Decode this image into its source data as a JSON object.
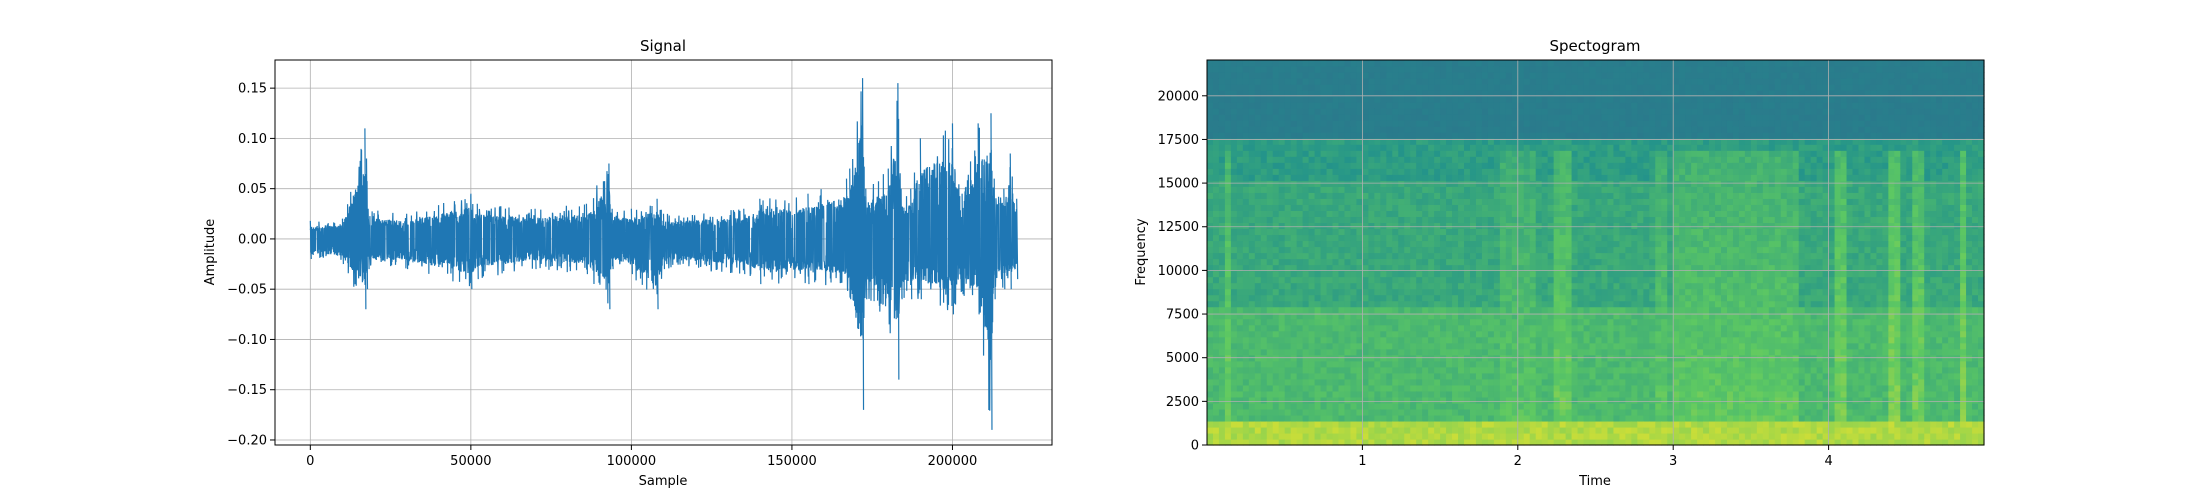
{
  "chart_data": [
    {
      "type": "line",
      "title": "Signal",
      "xlabel": "Sample",
      "ylabel": "Amplitude",
      "xlim": [
        -11000,
        231000
      ],
      "ylim": [
        -0.205,
        0.178
      ],
      "xticks": [
        0,
        50000,
        100000,
        150000,
        200000
      ],
      "xtick_labels": [
        "0",
        "50000",
        "100000",
        "150000",
        "200000"
      ],
      "yticks": [
        -0.2,
        -0.15,
        -0.1,
        -0.05,
        0.0,
        0.05,
        0.1,
        0.15
      ],
      "ytick_labels": [
        "−0.20",
        "−0.15",
        "−0.10",
        "−0.05",
        "0.00",
        "0.05",
        "0.10",
        "0.15"
      ],
      "grid": true,
      "color": "#1f77b4",
      "series": [
        {
          "x": [
            0,
            10000,
            17000,
            17500,
            18000,
            30000,
            50000,
            52000,
            70000,
            86000,
            93000,
            94000,
            100000,
            108000,
            110000,
            135000,
            140000,
            155000,
            167000,
            168000,
            172000,
            173000,
            180000,
            183000,
            184000,
            187000,
            190000,
            200000,
            203000,
            208000,
            212000,
            213000,
            216000,
            218000,
            220000
          ],
          "y_envelope_upper": [
            0.018,
            0.02,
            0.11,
            0.08,
            0.03,
            0.025,
            0.045,
            0.035,
            0.03,
            0.035,
            0.075,
            0.03,
            0.03,
            0.04,
            0.025,
            0.03,
            0.04,
            0.045,
            0.06,
            0.07,
            0.16,
            0.05,
            0.07,
            0.155,
            0.05,
            0.05,
            0.1,
            0.115,
            0.045,
            0.115,
            0.125,
            0.06,
            0.05,
            0.085,
            0.04
          ],
          "y_envelope_lower": [
            -0.02,
            -0.025,
            -0.07,
            -0.05,
            -0.03,
            -0.03,
            -0.05,
            -0.04,
            -0.03,
            -0.035,
            -0.07,
            -0.03,
            -0.035,
            -0.07,
            -0.03,
            -0.035,
            -0.045,
            -0.045,
            -0.05,
            -0.06,
            -0.17,
            -0.06,
            -0.085,
            -0.14,
            -0.06,
            -0.06,
            -0.06,
            -0.075,
            -0.055,
            -0.075,
            -0.19,
            -0.06,
            -0.05,
            -0.05,
            -0.04
          ]
        }
      ]
    },
    {
      "type": "heatmap",
      "title": "Spectogram",
      "xlabel": "Time",
      "ylabel": "Frequency",
      "xlim": [
        0,
        5.0
      ],
      "ylim": [
        0,
        22050
      ],
      "xticks": [
        1,
        2,
        3,
        4
      ],
      "xtick_labels": [
        "1",
        "2",
        "3",
        "4"
      ],
      "yticks": [
        0,
        2500,
        5000,
        7500,
        10000,
        12500,
        15000,
        17500,
        20000
      ],
      "ytick_labels": [
        "0",
        "2500",
        "5000",
        "7500",
        "10000",
        "12500",
        "15000",
        "17500",
        "20000"
      ],
      "grid": true,
      "colormap": "viridis",
      "bands": [
        {
          "freq_range": [
            17500,
            22050
          ],
          "level": 0.42
        },
        {
          "freq_range": [
            15000,
            17500
          ],
          "level": 0.55
        },
        {
          "freq_range": [
            8000,
            15000
          ],
          "level": 0.6
        },
        {
          "freq_range": [
            1500,
            8000
          ],
          "level": 0.68
        },
        {
          "freq_range": [
            0,
            1500
          ],
          "level": 0.88
        }
      ],
      "loud_time_regions": [
        {
          "time_range": [
            0.13,
            0.16
          ],
          "level": 0.78
        },
        {
          "time_range": [
            1.9,
            2.1
          ],
          "level": 0.74
        },
        {
          "time_range": [
            2.25,
            2.35
          ],
          "level": 0.78
        },
        {
          "time_range": [
            2.9,
            2.95
          ],
          "level": 0.75
        },
        {
          "time_range": [
            3.0,
            3.8
          ],
          "level": 0.76
        },
        {
          "time_range": [
            4.05,
            4.1
          ],
          "level": 0.8
        },
        {
          "time_range": [
            4.4,
            4.45
          ],
          "level": 0.82
        },
        {
          "time_range": [
            4.55,
            4.6
          ],
          "level": 0.8
        },
        {
          "time_range": [
            4.85,
            4.9
          ],
          "level": 0.82
        }
      ]
    }
  ]
}
